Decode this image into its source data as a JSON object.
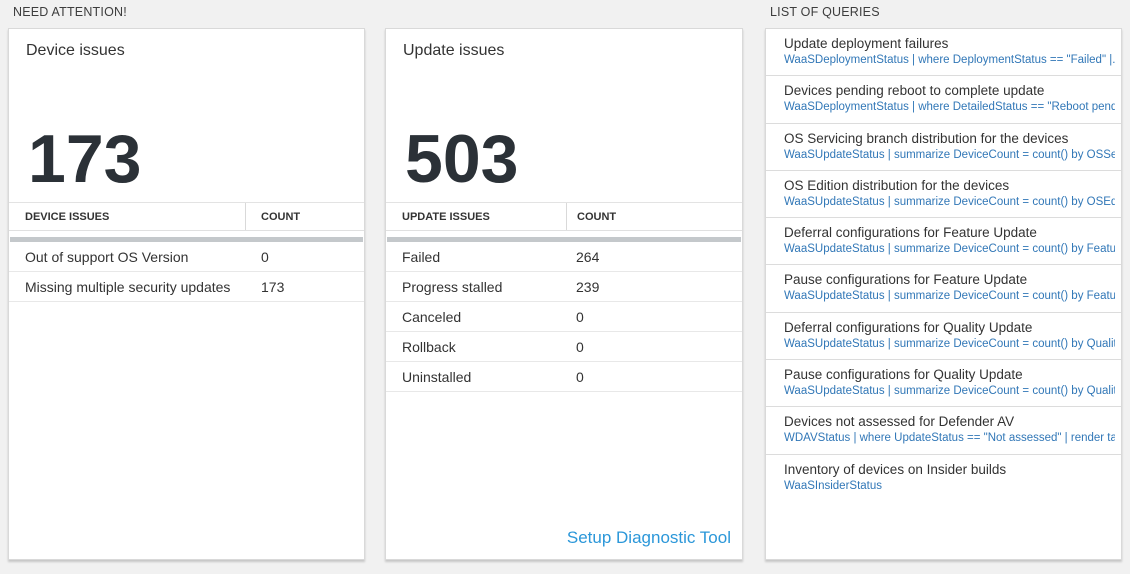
{
  "sections": {
    "need_attention_label": "NEED ATTENTION!",
    "list_of_queries_label": "LIST OF QUERIES"
  },
  "device_card": {
    "title": "Device issues",
    "big_number": "173",
    "table": {
      "headers": [
        "DEVICE ISSUES",
        "COUNT"
      ],
      "rows": [
        [
          "Out of support OS Version",
          "0"
        ],
        [
          "Missing multiple security updates",
          "173"
        ]
      ]
    }
  },
  "update_card": {
    "title": "Update issues",
    "big_number": "503",
    "table": {
      "headers": [
        "UPDATE ISSUES",
        "COUNT"
      ],
      "rows": [
        [
          "Failed",
          "264"
        ],
        [
          "Progress stalled",
          "239"
        ],
        [
          "Canceled",
          "0"
        ],
        [
          "Rollback",
          "0"
        ],
        [
          "Uninstalled",
          "0"
        ]
      ]
    },
    "setup_link_label": "Setup Diagnostic Tool"
  },
  "queries": [
    {
      "title": "Update deployment failures",
      "query": "WaaSDeploymentStatus | where DeploymentStatus == \"Failed\" |..."
    },
    {
      "title": "Devices pending reboot to complete update",
      "query": "WaaSDeploymentStatus | where DetailedStatus == \"Reboot pend..."
    },
    {
      "title": "OS Servicing branch distribution for the devices",
      "query": "WaaSUpdateStatus | summarize DeviceCount = count() by OSSer..."
    },
    {
      "title": "OS Edition distribution for the devices",
      "query": "WaaSUpdateStatus | summarize DeviceCount = count() by OSEdit..."
    },
    {
      "title": "Deferral configurations for Feature Update",
      "query": "WaaSUpdateStatus | summarize DeviceCount = count() by Featur..."
    },
    {
      "title": "Pause configurations for Feature Update",
      "query": "WaaSUpdateStatus | summarize DeviceCount = count() by Featur..."
    },
    {
      "title": "Deferral configurations for Quality Update",
      "query": "WaaSUpdateStatus | summarize DeviceCount = count() by Qualit..."
    },
    {
      "title": "Pause configurations for Quality Update",
      "query": "WaaSUpdateStatus | summarize DeviceCount = count() by Qualit..."
    },
    {
      "title": "Devices not assessed for Defender AV",
      "query": "WDAVStatus | where UpdateStatus == \"Not assessed\" | render ta..."
    },
    {
      "title": "Inventory of devices on Insider builds",
      "query": "WaaSInsiderStatus"
    }
  ],
  "colors": {
    "page_background": "#f1f1f1",
    "card_background": "#ffffff",
    "query_link_blue": "#3177b7",
    "setup_link_blue": "#2b97d9",
    "big_number_color": "#2b3137",
    "table_bar_gray": "#c4c8cb"
  }
}
